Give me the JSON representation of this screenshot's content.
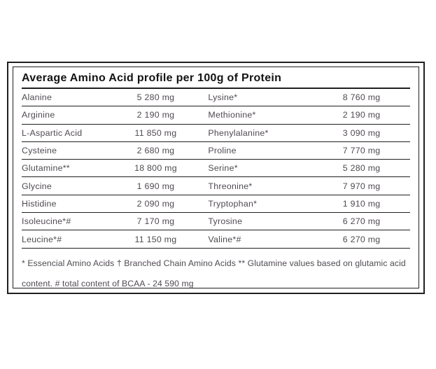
{
  "table": {
    "title": "Average Amino Acid profile per 100g of Protein",
    "rows": [
      {
        "name_left": "Alanine",
        "value_left": "5 280 mg",
        "name_right": "Lysine*",
        "value_right": "8 760 mg"
      },
      {
        "name_left": "Arginine",
        "value_left": "2 190 mg",
        "name_right": "Methionine*",
        "value_right": "2 190 mg"
      },
      {
        "name_left": "L-Aspartic Acid",
        "value_left": "11 850 mg",
        "name_right": "Phenylalanine*",
        "value_right": "3 090 mg"
      },
      {
        "name_left": "Cysteine",
        "value_left": "2 680 mg",
        "name_right": "Proline",
        "value_right": "7 770 mg"
      },
      {
        "name_left": "Glutamine**",
        "value_left": "18 800 mg",
        "name_right": "Serine*",
        "value_right": "5 280 mg"
      },
      {
        "name_left": "Glycine",
        "value_left": "1 690 mg",
        "name_right": "Threonine*",
        "value_right": "7 970 mg"
      },
      {
        "name_left": "Histidine",
        "value_left": "2 090 mg",
        "name_right": "Tryptophan*",
        "value_right": "1 910 mg"
      },
      {
        "name_left": "Isoleucine*#",
        "value_left": "7 170 mg",
        "name_right": "Tyrosine",
        "value_right": "6 270 mg"
      },
      {
        "name_left": "Leucine*#",
        "value_left": "11 150 mg",
        "name_right": "Valine*#",
        "value_right": "6 270 mg"
      }
    ],
    "footnote": {
      "line1": "* Essencial Amino Acids † Branched Chain Amino Acids ** Glutamine values based on glutamic acid",
      "line2": "content. # total content of BCAA - 24 590 mg"
    }
  },
  "colors": {
    "background": "#ffffff",
    "border": "#1f1f1f",
    "title_text": "#131313",
    "body_text": "#504a52"
  }
}
